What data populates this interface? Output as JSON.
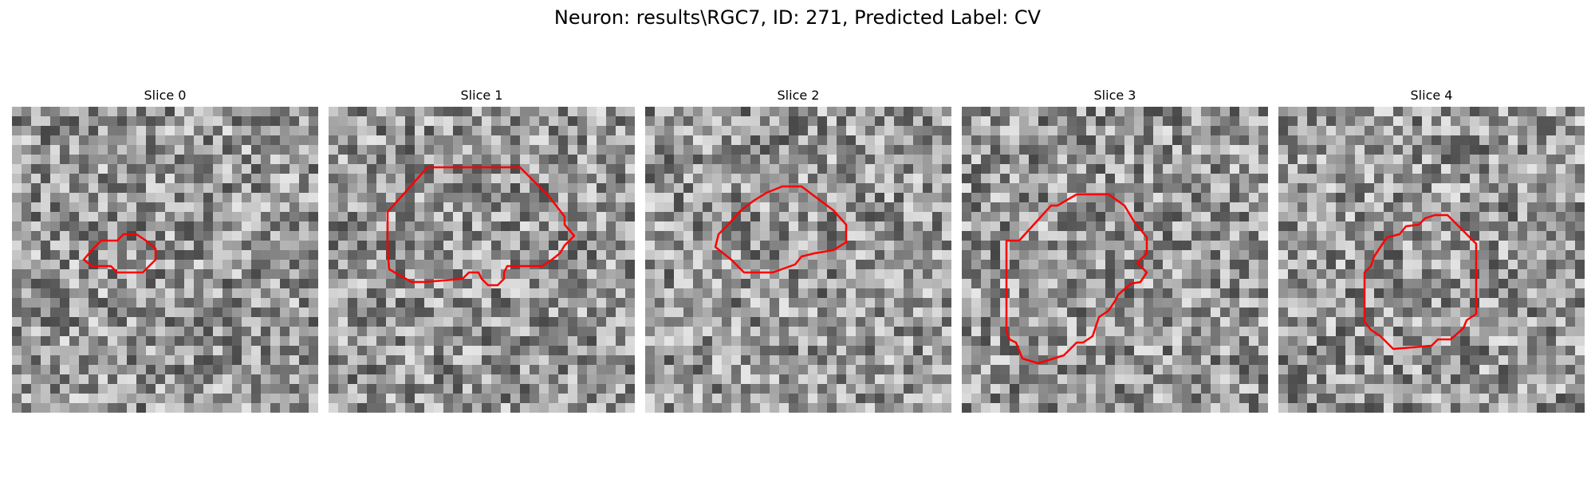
{
  "figure": {
    "title": "Neuron: results\\RGC7, ID: 271, Predicted Label: CV"
  },
  "panels": [
    {
      "title": "Slice 0"
    },
    {
      "title": "Slice 1"
    },
    {
      "title": "Slice 2"
    },
    {
      "title": "Slice 3"
    },
    {
      "title": "Slice 4"
    }
  ],
  "colors": {
    "contour": "#ff0000",
    "image_colormap": "grayscale"
  }
}
